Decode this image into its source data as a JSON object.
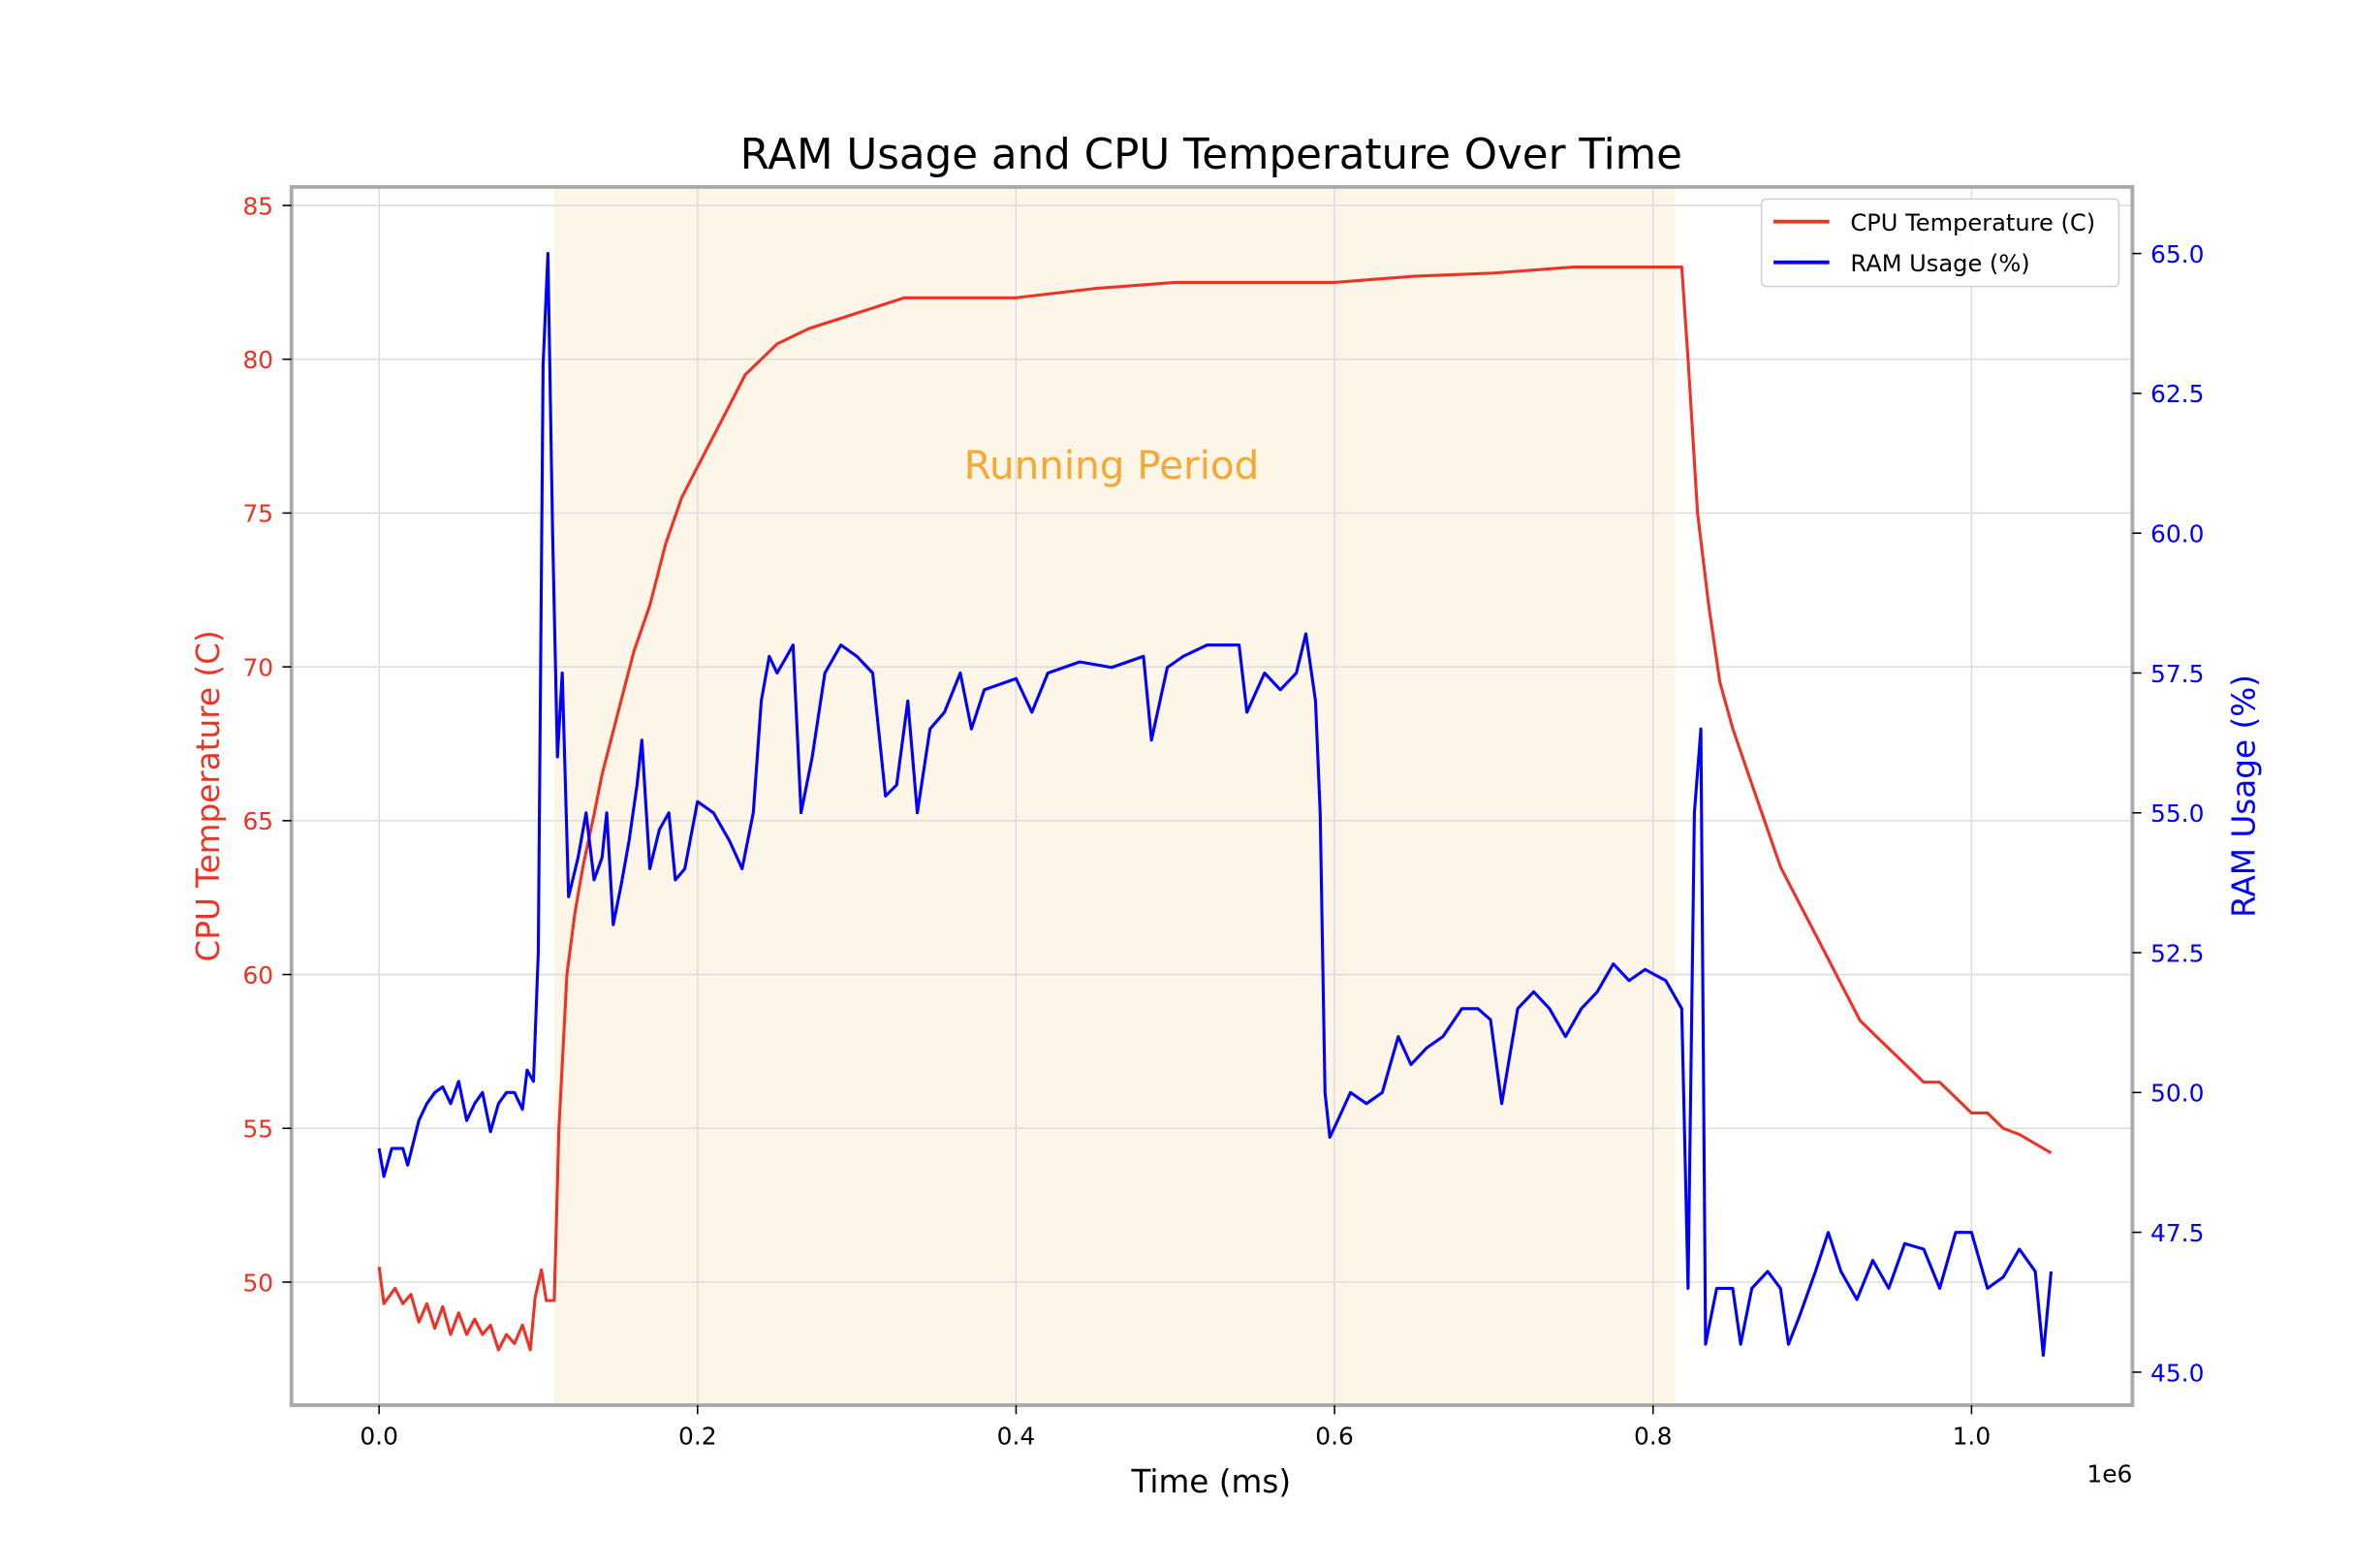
{
  "chart_data": {
    "type": "line",
    "title": "RAM Usage and CPU Temperature Over Time",
    "xlabel": "Time (ms)",
    "x_offset_label": "1e6",
    "xlim": [
      -55000,
      1101000
    ],
    "xticks": [
      0,
      200000,
      400000,
      600000,
      800000,
      1000000
    ],
    "xtick_labels": [
      "0.0",
      "0.2",
      "0.4",
      "0.6",
      "0.8",
      "1.0"
    ],
    "grid": true,
    "legend_placement": "top-right",
    "left_axis": {
      "label": "CPU Temperature (C)",
      "color": "#ee3224",
      "ylim": [
        46.0,
        85.6
      ],
      "ticks": [
        50,
        55,
        60,
        65,
        70,
        75,
        80,
        85
      ],
      "tick_labels": [
        "50",
        "55",
        "60",
        "65",
        "70",
        "75",
        "80",
        "85"
      ]
    },
    "right_axis": {
      "label": "RAM Usage (%)",
      "color": "#0000ff",
      "ylim": [
        44.41,
        66.19
      ],
      "ticks": [
        45,
        47.5,
        50,
        52.5,
        55,
        57.5,
        60,
        62.5,
        65
      ],
      "tick_labels": [
        "45.0",
        "47.5",
        "50.0",
        "52.5",
        "55.0",
        "57.5",
        "60.0",
        "62.5",
        "65.0"
      ]
    },
    "annotation": {
      "text": "Running Period",
      "x": 460000,
      "y": 76.5,
      "color": "#f5a833",
      "span": [
        110000,
        814000
      ],
      "span_color": "#fdf5e8"
    },
    "series": [
      {
        "name": "CPU Temperature (C)",
        "axis": "left",
        "color": "#ee3224",
        "points": [
          [
            0,
            50.5
          ],
          [
            3000,
            49.3
          ],
          [
            10000,
            49.8
          ],
          [
            15000,
            49.3
          ],
          [
            20000,
            49.6
          ],
          [
            25000,
            48.7
          ],
          [
            30000,
            49.3
          ],
          [
            35000,
            48.5
          ],
          [
            40000,
            49.2
          ],
          [
            45000,
            48.3
          ],
          [
            50000,
            49
          ],
          [
            55000,
            48.3
          ],
          [
            60000,
            48.8
          ],
          [
            65000,
            48.3
          ],
          [
            70000,
            48.6
          ],
          [
            75000,
            47.8
          ],
          [
            80000,
            48.3
          ],
          [
            85000,
            48
          ],
          [
            90000,
            48.6
          ],
          [
            95000,
            47.8
          ],
          [
            98000,
            49.5
          ],
          [
            102000,
            50.4
          ],
          [
            105000,
            49.4
          ],
          [
            110000,
            49.4
          ],
          [
            113000,
            55
          ],
          [
            118000,
            60
          ],
          [
            123000,
            62
          ],
          [
            128000,
            63.5
          ],
          [
            135000,
            65.2
          ],
          [
            140000,
            66.5
          ],
          [
            150000,
            68.5
          ],
          [
            160000,
            70.5
          ],
          [
            170000,
            72
          ],
          [
            180000,
            74
          ],
          [
            190000,
            75.5
          ],
          [
            200000,
            76.5
          ],
          [
            210000,
            77.5
          ],
          [
            220000,
            78.5
          ],
          [
            230000,
            79.5
          ],
          [
            240000,
            80
          ],
          [
            250000,
            80.5
          ],
          [
            270000,
            81
          ],
          [
            300000,
            81.5
          ],
          [
            330000,
            82
          ],
          [
            400000,
            82
          ],
          [
            450000,
            82.3
          ],
          [
            500000,
            82.5
          ],
          [
            560000,
            82.5
          ],
          [
            600000,
            82.5
          ],
          [
            650000,
            82.7
          ],
          [
            700000,
            82.8
          ],
          [
            750000,
            83
          ],
          [
            800000,
            83
          ],
          [
            818000,
            83
          ],
          [
            822000,
            80
          ],
          [
            828000,
            75
          ],
          [
            835000,
            72
          ],
          [
            842000,
            69.5
          ],
          [
            850000,
            68
          ],
          [
            860000,
            66.5
          ],
          [
            870000,
            65
          ],
          [
            880000,
            63.5
          ],
          [
            890000,
            62.5
          ],
          [
            900000,
            61.5
          ],
          [
            910000,
            60.5
          ],
          [
            920000,
            59.5
          ],
          [
            930000,
            58.5
          ],
          [
            940000,
            58
          ],
          [
            950000,
            57.5
          ],
          [
            960000,
            57
          ],
          [
            970000,
            56.5
          ],
          [
            980000,
            56.5
          ],
          [
            990000,
            56
          ],
          [
            1000000,
            55.5
          ],
          [
            1010000,
            55.5
          ],
          [
            1020000,
            55
          ],
          [
            1030000,
            54.8
          ],
          [
            1040000,
            54.5
          ],
          [
            1050000,
            54.2
          ]
        ]
      },
      {
        "name": "RAM Usage (%)",
        "axis": "right",
        "color": "#0000ff",
        "points": [
          [
            0,
            49
          ],
          [
            3000,
            48.5
          ],
          [
            8000,
            49
          ],
          [
            15000,
            49
          ],
          [
            18000,
            48.7
          ],
          [
            25000,
            49.5
          ],
          [
            30000,
            49.8
          ],
          [
            35000,
            50
          ],
          [
            40000,
            50.1
          ],
          [
            45000,
            49.8
          ],
          [
            50000,
            50.2
          ],
          [
            55000,
            49.5
          ],
          [
            60000,
            49.8
          ],
          [
            65000,
            50
          ],
          [
            70000,
            49.3
          ],
          [
            75000,
            49.8
          ],
          [
            80000,
            50
          ],
          [
            85000,
            50
          ],
          [
            90000,
            49.7
          ],
          [
            93000,
            50.4
          ],
          [
            97000,
            50.2
          ],
          [
            100000,
            52.5
          ],
          [
            103000,
            63
          ],
          [
            106000,
            65
          ],
          [
            109000,
            60
          ],
          [
            112000,
            56
          ],
          [
            115000,
            57.5
          ],
          [
            119000,
            53.5
          ],
          [
            125000,
            54.2
          ],
          [
            130000,
            55
          ],
          [
            135000,
            53.8
          ],
          [
            140000,
            54.2
          ],
          [
            143000,
            55
          ],
          [
            147000,
            53
          ],
          [
            152000,
            53.7
          ],
          [
            157000,
            54.5
          ],
          [
            162000,
            55.5
          ],
          [
            165000,
            56.3
          ],
          [
            170000,
            54
          ],
          [
            176000,
            54.7
          ],
          [
            182000,
            55
          ],
          [
            186000,
            53.8
          ],
          [
            192000,
            54
          ],
          [
            200000,
            55.2
          ],
          [
            210000,
            55
          ],
          [
            220000,
            54.5
          ],
          [
            228000,
            54
          ],
          [
            235000,
            55
          ],
          [
            240000,
            57
          ],
          [
            245000,
            57.8
          ],
          [
            250000,
            57.5
          ],
          [
            256000,
            57.8
          ],
          [
            260000,
            58
          ],
          [
            265000,
            55
          ],
          [
            272000,
            56
          ],
          [
            280000,
            57.5
          ],
          [
            290000,
            58
          ],
          [
            300000,
            57.8
          ],
          [
            310000,
            57.5
          ],
          [
            318000,
            55.3
          ],
          [
            325000,
            55.5
          ],
          [
            332000,
            57
          ],
          [
            338000,
            55
          ],
          [
            346000,
            56.5
          ],
          [
            355000,
            56.8
          ],
          [
            365000,
            57.5
          ],
          [
            372000,
            56.5
          ],
          [
            380000,
            57.2
          ],
          [
            400000,
            57.4
          ],
          [
            410000,
            56.8
          ],
          [
            420000,
            57.5
          ],
          [
            440000,
            57.7
          ],
          [
            460000,
            57.6
          ],
          [
            480000,
            57.8
          ],
          [
            485000,
            56.3
          ],
          [
            495000,
            57.6
          ],
          [
            505000,
            57.8
          ],
          [
            520000,
            58
          ],
          [
            540000,
            58
          ],
          [
            545000,
            56.8
          ],
          [
            556000,
            57.5
          ],
          [
            566000,
            57.2
          ],
          [
            576000,
            57.5
          ],
          [
            582000,
            58.2
          ],
          [
            588000,
            57
          ],
          [
            591000,
            55
          ],
          [
            594000,
            50
          ],
          [
            597000,
            49.2
          ],
          [
            602000,
            49.5
          ],
          [
            610000,
            50
          ],
          [
            620000,
            49.8
          ],
          [
            630000,
            50
          ],
          [
            640000,
            51
          ],
          [
            648000,
            50.5
          ],
          [
            658000,
            50.8
          ],
          [
            668000,
            51
          ],
          [
            680000,
            51.5
          ],
          [
            690000,
            51.5
          ],
          [
            698000,
            51.3
          ],
          [
            705000,
            49.8
          ],
          [
            715000,
            51.5
          ],
          [
            725000,
            51.8
          ],
          [
            735000,
            51.5
          ],
          [
            745000,
            51
          ],
          [
            755000,
            51.5
          ],
          [
            765000,
            51.8
          ],
          [
            775000,
            52.3
          ],
          [
            785000,
            52
          ],
          [
            795000,
            52.2
          ],
          [
            808000,
            52
          ],
          [
            818000,
            51.5
          ],
          [
            822000,
            46.5
          ],
          [
            826000,
            55
          ],
          [
            830000,
            56.5
          ],
          [
            833000,
            45.5
          ],
          [
            840000,
            46.5
          ],
          [
            850000,
            46.5
          ],
          [
            855000,
            45.5
          ],
          [
            862000,
            46.5
          ],
          [
            872000,
            46.8
          ],
          [
            880000,
            46.5
          ],
          [
            885000,
            45.5
          ],
          [
            892000,
            46
          ],
          [
            902000,
            46.8
          ],
          [
            910000,
            47.5
          ],
          [
            918000,
            46.8
          ],
          [
            928000,
            46.3
          ],
          [
            938000,
            47
          ],
          [
            948000,
            46.5
          ],
          [
            958000,
            47.3
          ],
          [
            970000,
            47.2
          ],
          [
            980000,
            46.5
          ],
          [
            990000,
            47.5
          ],
          [
            1000000,
            47.5
          ],
          [
            1010000,
            46.5
          ],
          [
            1020000,
            46.7
          ],
          [
            1030000,
            47.2
          ],
          [
            1040000,
            46.8
          ],
          [
            1045000,
            45.3
          ],
          [
            1050000,
            46.8
          ]
        ]
      }
    ]
  }
}
